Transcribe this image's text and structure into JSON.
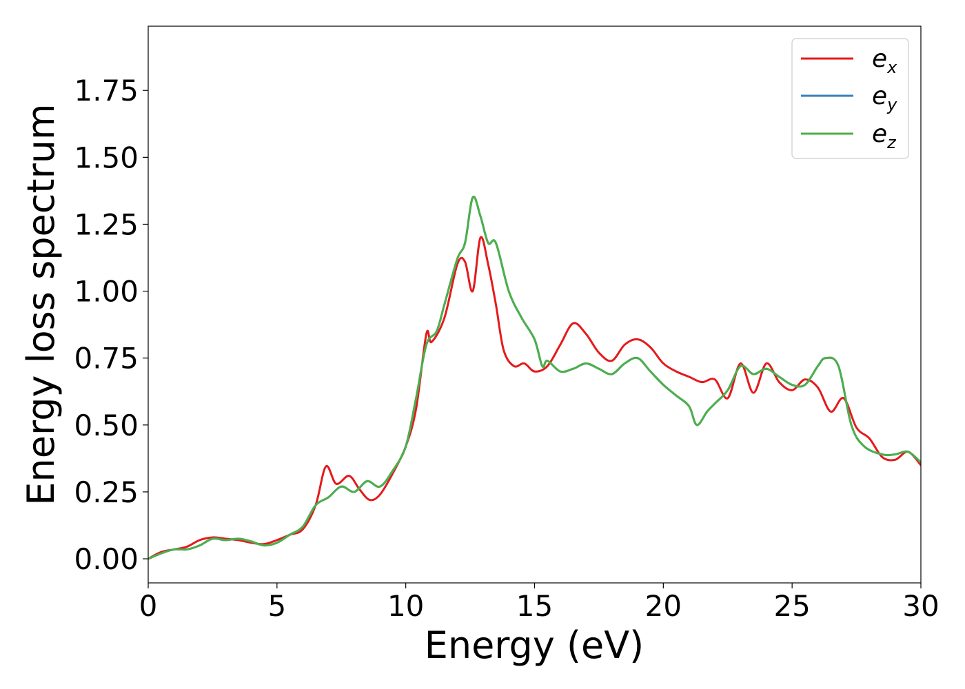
{
  "chart_data": {
    "type": "line",
    "title": "",
    "xlabel": "Energy (eV)",
    "ylabel": "Energy loss spectrum",
    "xlim": [
      0,
      30
    ],
    "ylim": [
      -0.09,
      1.99
    ],
    "xticks": [
      0,
      5,
      10,
      15,
      20,
      25,
      30
    ],
    "xtick_labels": [
      "0",
      "5",
      "10",
      "15",
      "20",
      "25",
      "30"
    ],
    "yticks": [
      0.0,
      0.25,
      0.5,
      0.75,
      1.0,
      1.25,
      1.5,
      1.75
    ],
    "ytick_labels": [
      "0.00",
      "0.25",
      "0.50",
      "0.75",
      "1.00",
      "1.25",
      "1.50",
      "1.75"
    ],
    "grid": false,
    "legend_position": "top-right",
    "series": [
      {
        "name": "e",
        "subscript": "x",
        "color": "#e41a1c",
        "x": [
          0,
          0.5,
          1,
          1.5,
          2,
          2.5,
          3,
          3.5,
          4,
          4.5,
          5,
          5.5,
          6,
          6.5,
          6.9,
          7.3,
          7.8,
          8.2,
          8.6,
          9,
          9.5,
          10,
          10.4,
          10.8,
          11,
          11.5,
          12,
          12.3,
          12.6,
          12.9,
          13.2,
          13.5,
          13.8,
          14.2,
          14.6,
          15,
          15.5,
          16,
          16.5,
          17,
          17.5,
          18,
          18.5,
          19,
          19.5,
          20,
          20.5,
          21,
          21.5,
          22,
          22.5,
          23,
          23.5,
          24,
          24.5,
          25,
          25.5,
          26,
          26.5,
          27,
          27.5,
          28,
          28.5,
          29,
          29.5,
          30
        ],
        "y": [
          0,
          0.025,
          0.035,
          0.045,
          0.07,
          0.08,
          0.075,
          0.07,
          0.06,
          0.055,
          0.07,
          0.09,
          0.11,
          0.2,
          0.345,
          0.28,
          0.31,
          0.26,
          0.22,
          0.24,
          0.32,
          0.42,
          0.56,
          0.84,
          0.81,
          0.9,
          1.1,
          1.11,
          1.0,
          1.2,
          1.1,
          0.95,
          0.78,
          0.72,
          0.73,
          0.7,
          0.72,
          0.8,
          0.88,
          0.84,
          0.77,
          0.74,
          0.8,
          0.82,
          0.79,
          0.73,
          0.7,
          0.68,
          0.66,
          0.67,
          0.6,
          0.73,
          0.62,
          0.73,
          0.66,
          0.63,
          0.67,
          0.64,
          0.55,
          0.6,
          0.49,
          0.45,
          0.38,
          0.37,
          0.4,
          0.35
        ]
      },
      {
        "name": "e",
        "subscript": "y",
        "color": "#377eb8",
        "x": [
          0,
          0.5,
          1,
          1.5,
          2,
          2.5,
          3,
          3.5,
          4,
          4.5,
          5,
          5.5,
          6,
          6.5,
          7,
          7.5,
          8,
          8.5,
          9,
          9.5,
          10,
          10.4,
          10.8,
          11.2,
          11.5,
          12,
          12.3,
          12.6,
          12.9,
          13.2,
          13.5,
          14,
          14.5,
          15,
          15.3,
          15.5,
          16,
          16.5,
          17,
          17.5,
          18,
          18.5,
          19,
          19.5,
          20,
          20.5,
          21,
          21.3,
          21.7,
          22,
          22.5,
          23,
          23.5,
          24,
          24.5,
          25,
          25.5,
          26,
          26.3,
          26.8,
          27.3,
          27.8,
          28.5,
          29,
          29.5,
          30
        ],
        "y": [
          0,
          0.02,
          0.035,
          0.035,
          0.05,
          0.075,
          0.07,
          0.075,
          0.065,
          0.05,
          0.06,
          0.09,
          0.12,
          0.2,
          0.23,
          0.27,
          0.25,
          0.29,
          0.27,
          0.33,
          0.42,
          0.6,
          0.8,
          0.85,
          0.95,
          1.12,
          1.18,
          1.35,
          1.28,
          1.18,
          1.18,
          1.0,
          0.9,
          0.82,
          0.72,
          0.74,
          0.7,
          0.71,
          0.73,
          0.71,
          0.69,
          0.73,
          0.75,
          0.7,
          0.65,
          0.61,
          0.57,
          0.5,
          0.55,
          0.58,
          0.63,
          0.72,
          0.69,
          0.71,
          0.68,
          0.65,
          0.65,
          0.72,
          0.75,
          0.72,
          0.5,
          0.42,
          0.39,
          0.39,
          0.4,
          0.36
        ]
      },
      {
        "name": "e",
        "subscript": "z",
        "color": "#4daf4a",
        "x": [
          0,
          0.5,
          1,
          1.5,
          2,
          2.5,
          3,
          3.5,
          4,
          4.5,
          5,
          5.5,
          6,
          6.5,
          7,
          7.5,
          8,
          8.5,
          9,
          9.5,
          10,
          10.4,
          10.8,
          11.2,
          11.5,
          12,
          12.3,
          12.6,
          12.9,
          13.2,
          13.5,
          14,
          14.5,
          15,
          15.3,
          15.5,
          16,
          16.5,
          17,
          17.5,
          18,
          18.5,
          19,
          19.5,
          20,
          20.5,
          21,
          21.3,
          21.7,
          22,
          22.5,
          23,
          23.5,
          24,
          24.5,
          25,
          25.5,
          26,
          26.3,
          26.8,
          27.3,
          27.8,
          28.5,
          29,
          29.5,
          30
        ],
        "y": [
          0,
          0.02,
          0.035,
          0.035,
          0.05,
          0.075,
          0.07,
          0.075,
          0.065,
          0.05,
          0.06,
          0.09,
          0.12,
          0.2,
          0.23,
          0.27,
          0.25,
          0.29,
          0.27,
          0.33,
          0.42,
          0.6,
          0.8,
          0.85,
          0.95,
          1.12,
          1.18,
          1.35,
          1.28,
          1.18,
          1.18,
          1.0,
          0.9,
          0.82,
          0.72,
          0.74,
          0.7,
          0.71,
          0.73,
          0.71,
          0.69,
          0.73,
          0.75,
          0.7,
          0.65,
          0.61,
          0.57,
          0.5,
          0.55,
          0.58,
          0.63,
          0.72,
          0.69,
          0.71,
          0.68,
          0.65,
          0.65,
          0.72,
          0.75,
          0.72,
          0.5,
          0.42,
          0.39,
          0.39,
          0.4,
          0.36
        ]
      }
    ]
  }
}
